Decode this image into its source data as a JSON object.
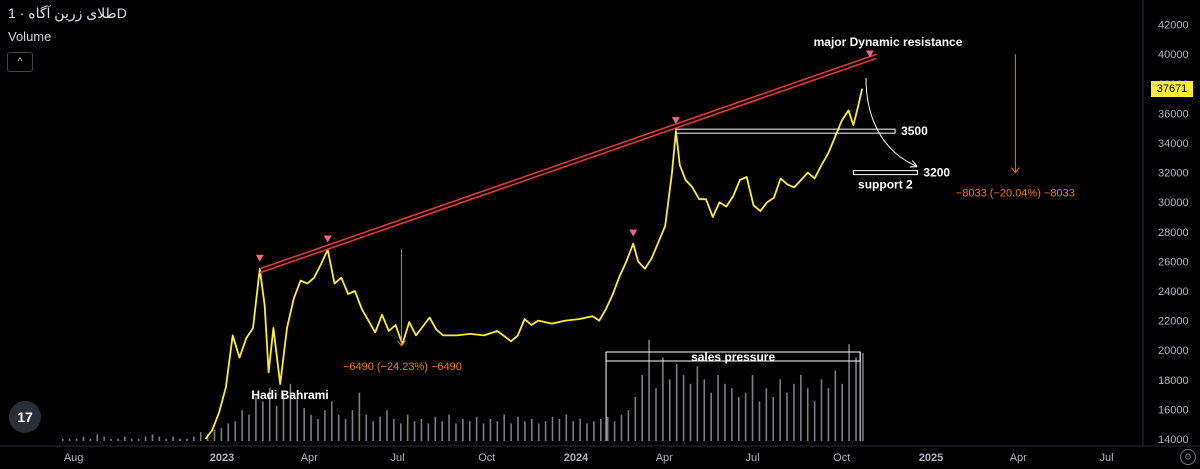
{
  "header": {
    "title": "طلای زرین آگاه · 1D",
    "volume_label": "Volume",
    "collapse_glyph": "^"
  },
  "icons": {
    "logo": "tradingview-logo-icon",
    "settings": "gear-icon"
  },
  "logo_text": "17",
  "price_badge": "37671",
  "colors": {
    "price": "#ffeb3b",
    "trend": "#e53935",
    "measure": "#f57c00",
    "volume": "#a6a8ad",
    "marker": "#f06292"
  },
  "chart_data": {
    "type": "line",
    "title": "",
    "ylim": [
      14000,
      42000
    ],
    "y_ticks": [
      14000,
      16000,
      18000,
      20000,
      22000,
      24000,
      26000,
      28000,
      30000,
      32000,
      34000,
      36000,
      38000,
      40000,
      42000
    ],
    "x_ticks": [
      {
        "label": "Aug",
        "date": "2022-08-01"
      },
      {
        "label": "2023",
        "date": "2023-01-01"
      },
      {
        "label": "Apr",
        "date": "2023-04-01"
      },
      {
        "label": "Jul",
        "date": "2023-07-01"
      },
      {
        "label": "Oct",
        "date": "2023-10-01"
      },
      {
        "label": "2024",
        "date": "2024-01-01"
      },
      {
        "label": "Apr",
        "date": "2024-04-01"
      },
      {
        "label": "Jul",
        "date": "2024-07-01"
      },
      {
        "label": "Oct",
        "date": "2024-10-01"
      },
      {
        "label": "2025",
        "date": "2025-01-01"
      },
      {
        "label": "Apr",
        "date": "2025-04-01"
      },
      {
        "label": "Jul",
        "date": "2025-07-01"
      }
    ],
    "series": [
      {
        "points": [
          [
            "2022-12-15",
            14000
          ],
          [
            "2022-12-22",
            14600
          ],
          [
            "2022-12-29",
            15800
          ],
          [
            "2023-01-05",
            17500
          ],
          [
            "2023-01-12",
            21000
          ],
          [
            "2023-01-19",
            19500
          ],
          [
            "2023-01-26",
            20800
          ],
          [
            "2023-02-02",
            21500
          ],
          [
            "2023-02-09",
            25500
          ],
          [
            "2023-02-14",
            23000
          ],
          [
            "2023-02-18",
            18500
          ],
          [
            "2023-02-23",
            21500
          ],
          [
            "2023-03-02",
            17700
          ],
          [
            "2023-03-09",
            21500
          ],
          [
            "2023-03-16",
            23500
          ],
          [
            "2023-03-23",
            24700
          ],
          [
            "2023-03-30",
            24500
          ],
          [
            "2023-04-06",
            24900
          ],
          [
            "2023-04-13",
            25800
          ],
          [
            "2023-04-20",
            26800
          ],
          [
            "2023-04-27",
            24500
          ],
          [
            "2023-05-04",
            24900
          ],
          [
            "2023-05-11",
            23800
          ],
          [
            "2023-05-18",
            24000
          ],
          [
            "2023-05-25",
            22800
          ],
          [
            "2023-06-01",
            22000
          ],
          [
            "2023-06-08",
            21200
          ],
          [
            "2023-06-15",
            22400
          ],
          [
            "2023-06-22",
            21300
          ],
          [
            "2023-06-29",
            21700
          ],
          [
            "2023-07-06",
            20400
          ],
          [
            "2023-07-13",
            21900
          ],
          [
            "2023-07-20",
            21000
          ],
          [
            "2023-07-27",
            21600
          ],
          [
            "2023-08-03",
            22200
          ],
          [
            "2023-08-10",
            21400
          ],
          [
            "2023-08-17",
            21000
          ],
          [
            "2023-08-31",
            21000
          ],
          [
            "2023-09-14",
            21100
          ],
          [
            "2023-09-28",
            21000
          ],
          [
            "2023-10-12",
            21300
          ],
          [
            "2023-10-26",
            20600
          ],
          [
            "2023-11-02",
            21000
          ],
          [
            "2023-11-09",
            22100
          ],
          [
            "2023-11-16",
            21700
          ],
          [
            "2023-11-23",
            22000
          ],
          [
            "2023-12-07",
            21800
          ],
          [
            "2023-12-21",
            22000
          ],
          [
            "2024-01-04",
            22100
          ],
          [
            "2024-01-18",
            22300
          ],
          [
            "2024-01-25",
            22000
          ],
          [
            "2024-02-01",
            22800
          ],
          [
            "2024-02-08",
            23800
          ],
          [
            "2024-02-15",
            25000
          ],
          [
            "2024-02-22",
            26000
          ],
          [
            "2024-02-29",
            27200
          ],
          [
            "2024-03-05",
            26000
          ],
          [
            "2024-03-12",
            25500
          ],
          [
            "2024-03-19",
            26200
          ],
          [
            "2024-03-26",
            27300
          ],
          [
            "2024-04-02",
            28400
          ],
          [
            "2024-04-09",
            32000
          ],
          [
            "2024-04-13",
            34800
          ],
          [
            "2024-04-17",
            32500
          ],
          [
            "2024-04-23",
            31500
          ],
          [
            "2024-04-30",
            31000
          ],
          [
            "2024-05-07",
            30200
          ],
          [
            "2024-05-14",
            30200
          ],
          [
            "2024-05-21",
            29000
          ],
          [
            "2024-05-28",
            30000
          ],
          [
            "2024-06-04",
            29700
          ],
          [
            "2024-06-11",
            30400
          ],
          [
            "2024-06-18",
            31500
          ],
          [
            "2024-06-25",
            31700
          ],
          [
            "2024-07-02",
            29800
          ],
          [
            "2024-07-09",
            29400
          ],
          [
            "2024-07-16",
            30000
          ],
          [
            "2024-07-23",
            30300
          ],
          [
            "2024-07-30",
            31600
          ],
          [
            "2024-08-06",
            31200
          ],
          [
            "2024-08-13",
            31000
          ],
          [
            "2024-08-20",
            31500
          ],
          [
            "2024-08-27",
            32000
          ],
          [
            "2024-09-03",
            31600
          ],
          [
            "2024-09-10",
            32500
          ],
          [
            "2024-09-17",
            33300
          ],
          [
            "2024-09-24",
            34400
          ],
          [
            "2024-10-01",
            35500
          ],
          [
            "2024-10-08",
            36200
          ],
          [
            "2024-10-13",
            35200
          ],
          [
            "2024-10-18",
            36500
          ],
          [
            "2024-10-22",
            37671
          ]
        ]
      }
    ],
    "volume": {
      "range": [
        "2022-07-20",
        "2024-10-22"
      ],
      "bars": [
        1,
        1,
        1,
        2,
        1,
        3,
        2,
        1,
        1,
        2,
        1,
        1,
        2,
        3,
        2,
        1,
        2,
        1,
        1,
        2,
        4,
        3,
        5,
        6,
        8,
        9,
        14,
        12,
        20,
        18,
        24,
        16,
        22,
        26,
        19,
        15,
        12,
        10,
        14,
        18,
        12,
        10,
        14,
        22,
        12,
        9,
        11,
        14,
        10,
        8,
        12,
        9,
        10,
        8,
        11,
        9,
        12,
        8,
        10,
        9,
        11,
        8,
        10,
        9,
        12,
        8,
        11,
        9,
        10,
        8,
        9,
        11,
        10,
        12,
        9,
        10,
        8,
        9,
        10,
        11,
        9,
        12,
        14,
        20,
        30,
        46,
        24,
        38,
        28,
        35,
        30,
        26,
        34,
        28,
        22,
        30,
        26,
        24,
        20,
        22,
        30,
        18,
        24,
        20,
        28,
        22,
        26,
        30,
        24,
        18,
        28,
        24,
        32,
        26,
        44,
        38,
        40
      ]
    },
    "trendline": {
      "from": [
        "2023-02-09",
        25500
      ],
      "to": [
        "2024-11-06",
        40000
      ],
      "label": "major Dynamic resistance"
    },
    "peak_markers": [
      [
        "2023-02-09",
        25500
      ],
      [
        "2023-04-20",
        26800
      ],
      [
        "2024-02-29",
        27200
      ],
      [
        "2024-04-13",
        34800
      ],
      [
        "2024-10-30",
        39300
      ]
    ],
    "levels": [
      {
        "label": "3500",
        "y": 34800,
        "from": "2024-04-13",
        "to": "2024-11-25"
      },
      {
        "label": "3200",
        "y": 32000,
        "from": "2024-10-13",
        "to": "2024-12-18",
        "sublabel": "support 2"
      }
    ],
    "measures": [
      {
        "label": "−6490 (−24.23%) −6490",
        "x": "2023-07-05",
        "y_from": 26800,
        "y_to": 20300
      },
      {
        "label": "−8033 (−20.04%) −8033",
        "x": "2025-03-29",
        "y_from": 40000,
        "y_to": 32000
      }
    ],
    "pressure_box": {
      "label": "sales pressure",
      "from": "2024-02-01",
      "to": "2024-10-20"
    },
    "author_label": "Hadi Bahrami"
  }
}
